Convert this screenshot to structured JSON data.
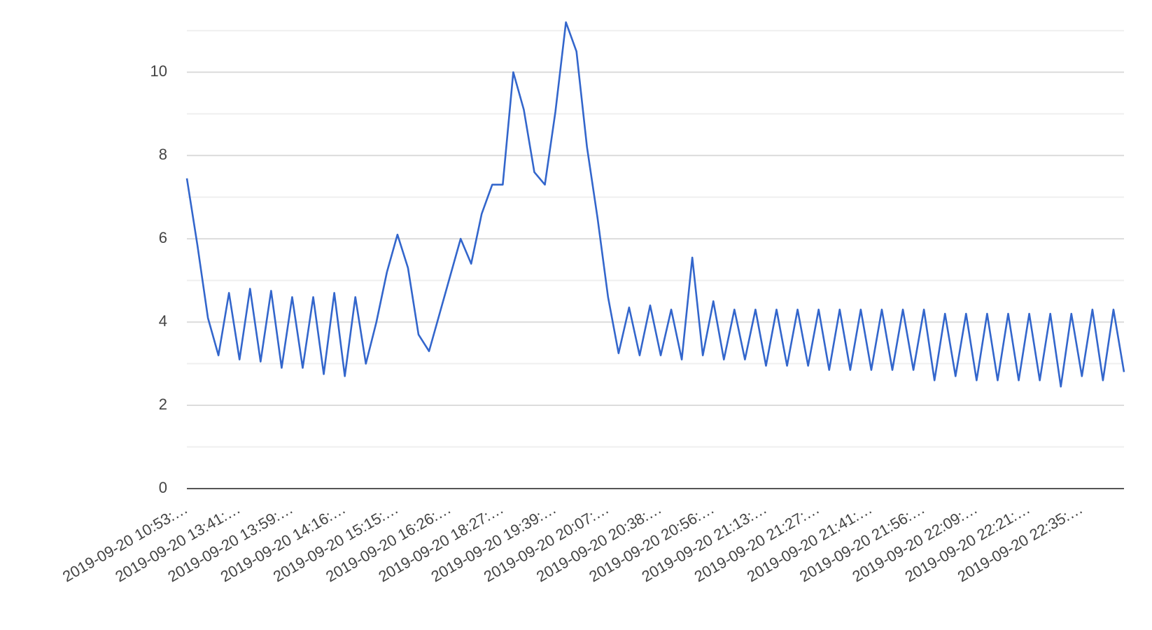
{
  "chart_data": {
    "type": "line",
    "categories": [
      "2019-09-20 10:53:…",
      null,
      null,
      null,
      null,
      "2019-09-20 13:41:…",
      null,
      null,
      null,
      null,
      "2019-09-20 13:59:…",
      null,
      null,
      null,
      null,
      "2019-09-20 14:16:…",
      null,
      null,
      null,
      null,
      "2019-09-20 15:15:…",
      null,
      null,
      null,
      null,
      "2019-09-20 16:26:…",
      null,
      null,
      null,
      null,
      "2019-09-20 18:27:…",
      null,
      null,
      null,
      null,
      "2019-09-20 19:39:…",
      null,
      null,
      null,
      null,
      "2019-09-20 20:07:…",
      null,
      null,
      null,
      null,
      "2019-09-20 20:38:…",
      null,
      null,
      null,
      null,
      "2019-09-20 20:56:…",
      null,
      null,
      null,
      null,
      "2019-09-20 21:13:…",
      null,
      null,
      null,
      null,
      "2019-09-20 21:27:…",
      null,
      null,
      null,
      null,
      "2019-09-20 21:41:…",
      null,
      null,
      null,
      null,
      "2019-09-20 21:56:…",
      null,
      null,
      null,
      null,
      "2019-09-20 22:09:…",
      null,
      null,
      null,
      null,
      "2019-09-20 22:21:…",
      null,
      null,
      null,
      null,
      "2019-09-20 22:35:…",
      null,
      null,
      null,
      null
    ],
    "series": [
      {
        "color": "#3366cc",
        "values": [
          7.45,
          5.85,
          4.1,
          3.2,
          4.7,
          3.1,
          4.8,
          3.05,
          4.75,
          2.9,
          4.6,
          2.9,
          4.6,
          2.75,
          4.7,
          2.7,
          4.6,
          3.0,
          4.0,
          5.2,
          6.1,
          5.3,
          3.7,
          3.3,
          4.2,
          5.1,
          6.0,
          5.4,
          6.6,
          7.3,
          7.3,
          10.0,
          9.1,
          7.6,
          7.3,
          9.05,
          11.2,
          10.5,
          8.2,
          6.5,
          4.6,
          3.25,
          4.35,
          3.2,
          4.4,
          3.2,
          4.3,
          3.1,
          5.55,
          3.2,
          4.5,
          3.1,
          4.3,
          3.1,
          4.3,
          2.95,
          4.3,
          2.95,
          4.3,
          2.95,
          4.3,
          2.85,
          4.3,
          2.85,
          4.3,
          2.85,
          4.3,
          2.85,
          4.3,
          2.85,
          4.3,
          2.6,
          4.2,
          2.7,
          4.2,
          2.6,
          4.2,
          2.6,
          4.2,
          2.6,
          4.2,
          2.6,
          4.2,
          2.45,
          4.2,
          2.7,
          4.3,
          2.6,
          4.3,
          2.8
        ]
      }
    ],
    "ylim": [
      0,
      11.6
    ],
    "yticks": [
      0,
      2,
      4,
      6,
      8,
      10
    ],
    "minor_yticks": [
      1,
      3,
      5,
      7,
      9,
      11
    ],
    "grid": true
  }
}
